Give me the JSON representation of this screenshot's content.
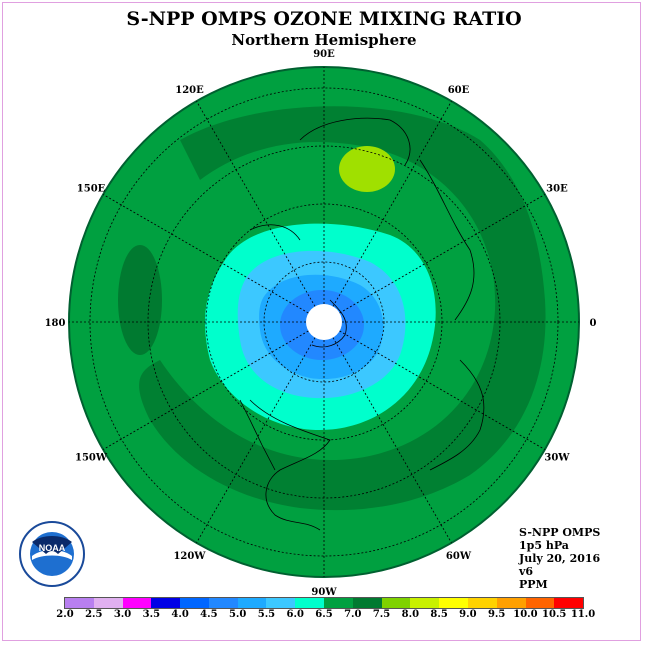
{
  "title": "S-NPP OMPS OZONE MIXING RATIO",
  "subtitle": "Northern Hemisphere",
  "logo_text": "NOAA",
  "info": {
    "line1": "S-NPP OMPS",
    "line2": "1p5 hPa",
    "line3": "July 20, 2016",
    "line4": "v6",
    "line5": "PPM"
  },
  "longitude_labels": [
    "90E",
    "60E",
    "30E",
    "0",
    "30W",
    "60W",
    "90W",
    "120W",
    "150W",
    "180",
    "150E",
    "120E"
  ],
  "legend": {
    "values": [
      "2.0",
      "2.5",
      "3.0",
      "3.5",
      "4.0",
      "4.5",
      "5.0",
      "5.5",
      "6.0",
      "6.5",
      "7.0",
      "7.5",
      "8.0",
      "8.5",
      "9.0",
      "9.5",
      "10.0",
      "10.5",
      "11.0"
    ],
    "colors": [
      "#b87ff0",
      "#e0b0f0",
      "#ff00ff",
      "#0000e6",
      "#0066ff",
      "#2288ff",
      "#1eaaff",
      "#3cc8ff",
      "#00ffcc",
      "#00a040",
      "#007a30",
      "#7fd200",
      "#c8f000",
      "#ffff00",
      "#ffd200",
      "#ffa000",
      "#ff6400",
      "#ff0000",
      "#8b5a3c"
    ]
  }
}
